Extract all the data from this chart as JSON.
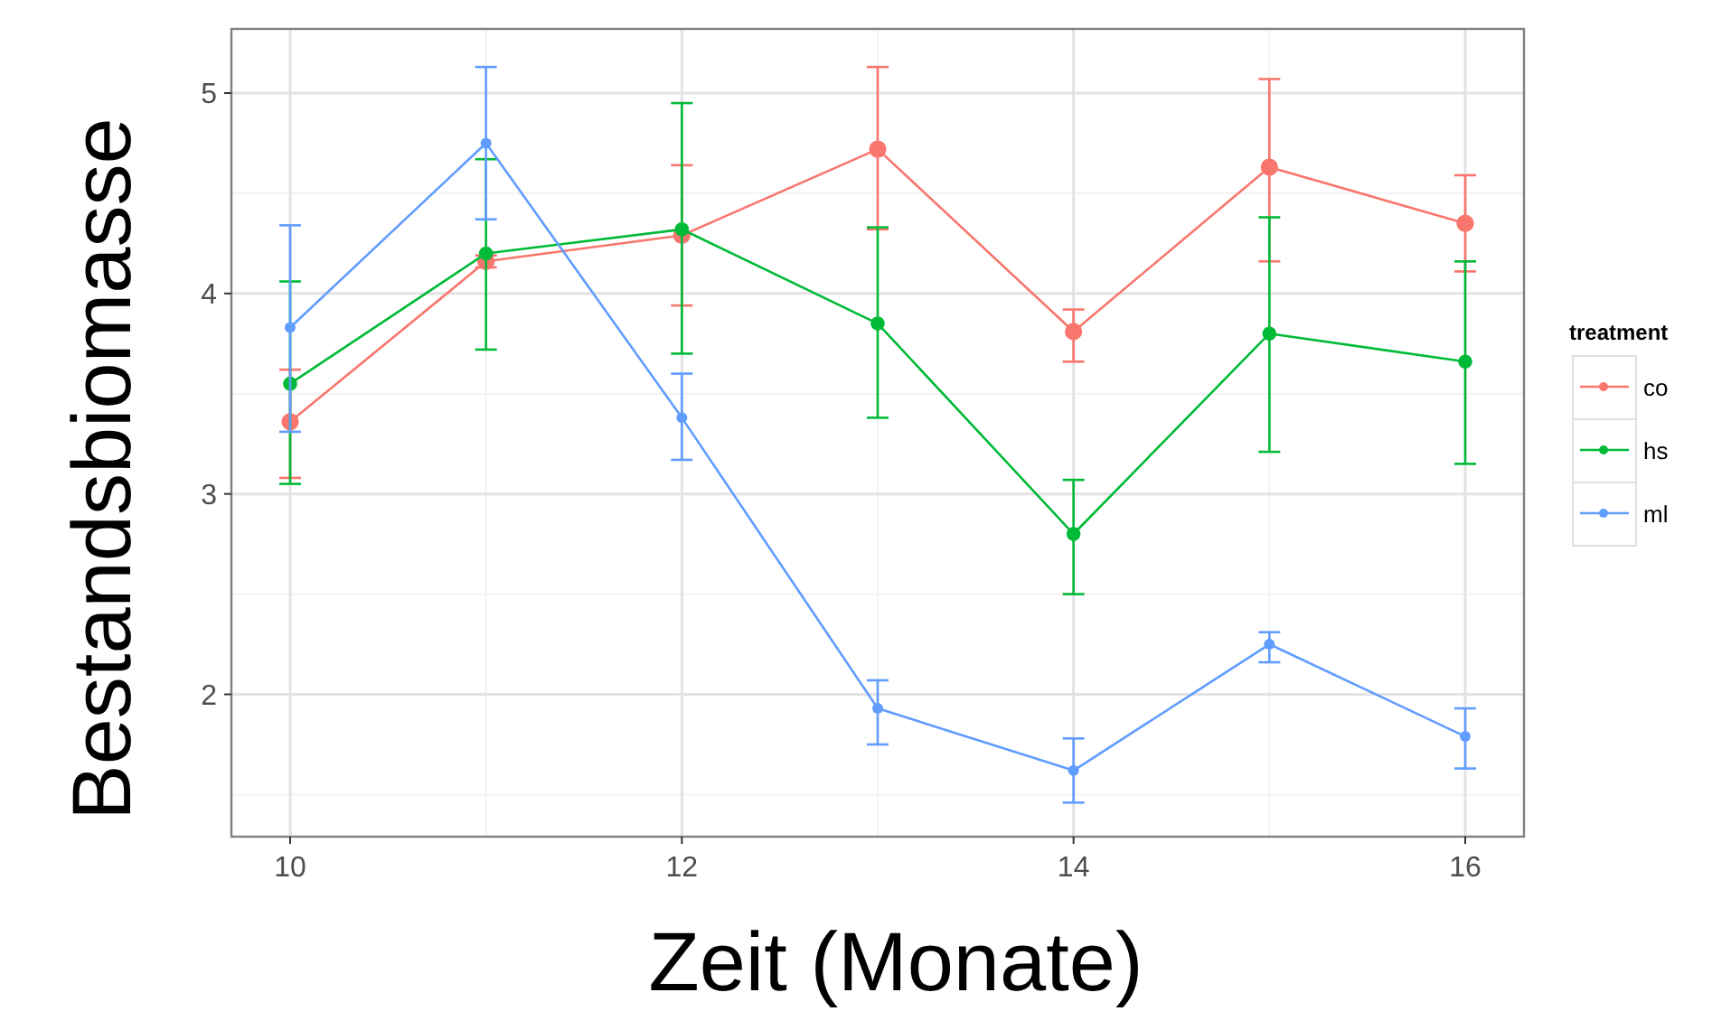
{
  "chart_data": {
    "type": "line",
    "xlabel": "Zeit (Monate)",
    "ylabel": "Bestandsbiomasse",
    "legend_title": "treatment",
    "x": [
      10,
      11,
      12,
      13,
      14,
      15,
      16
    ],
    "series": [
      {
        "name": "co",
        "color": "#f8766d",
        "values": [
          3.36,
          4.16,
          4.29,
          4.72,
          3.81,
          4.63,
          4.35
        ],
        "errors": [
          [
            3.08,
            3.62
          ],
          [
            4.13,
            4.19
          ],
          [
            3.94,
            4.64
          ],
          [
            4.32,
            5.13
          ],
          [
            3.66,
            3.92
          ],
          [
            4.16,
            5.07
          ],
          [
            4.11,
            4.59
          ]
        ]
      },
      {
        "name": "hs",
        "color": "#00ba38",
        "values": [
          3.55,
          4.2,
          4.32,
          3.85,
          2.8,
          3.8,
          3.66
        ],
        "errors": [
          [
            3.05,
            4.06
          ],
          [
            3.72,
            4.67
          ],
          [
            3.7,
            4.95
          ],
          [
            3.38,
            4.33
          ],
          [
            2.5,
            3.07
          ],
          [
            3.21,
            4.38
          ],
          [
            3.15,
            4.16
          ]
        ]
      },
      {
        "name": "ml",
        "color": "#619cff",
        "values": [
          3.83,
          4.75,
          3.38,
          1.93,
          1.62,
          2.25,
          1.79
        ],
        "errors": [
          [
            3.31,
            4.34
          ],
          [
            4.37,
            5.13
          ],
          [
            3.17,
            3.6
          ],
          [
            1.75,
            2.07
          ],
          [
            1.46,
            1.78
          ],
          [
            2.16,
            2.31
          ],
          [
            1.63,
            1.93
          ]
        ]
      }
    ],
    "xlim": [
      9.7,
      16.3
    ],
    "xticks": [
      10,
      12,
      14,
      16
    ],
    "ylim": [
      1.29,
      5.32
    ],
    "yticks": [
      2,
      3,
      4,
      5
    ],
    "grid": true,
    "legend": "right",
    "marker": "circle",
    "line_style": "solid"
  }
}
